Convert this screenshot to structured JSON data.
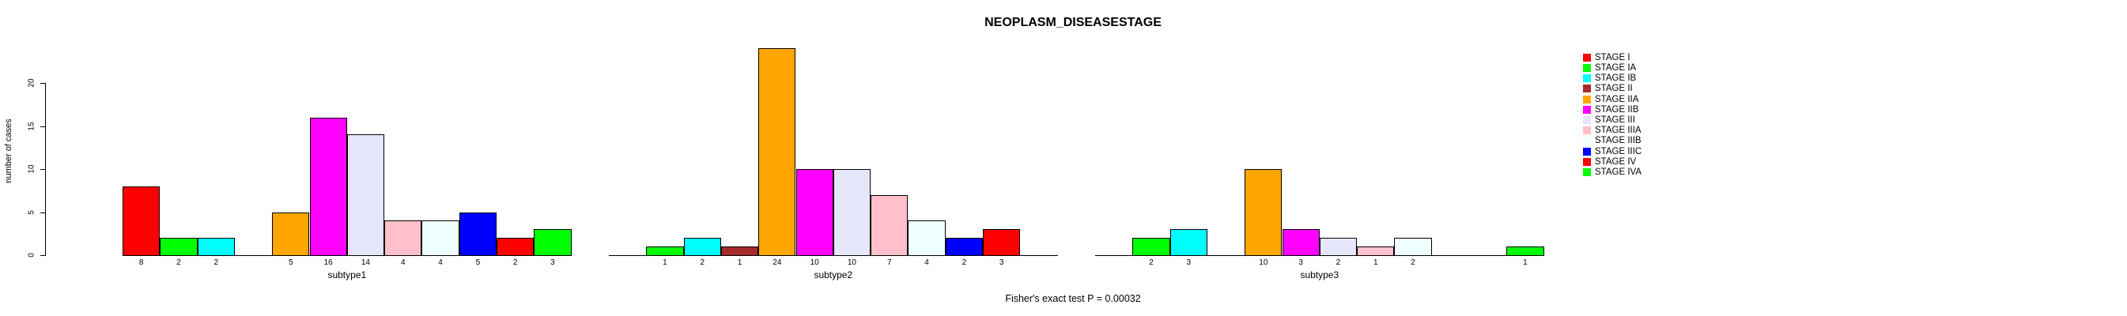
{
  "title": "NEOPLASM_DISEASESTAGE",
  "footer": "Fisher's exact test P = 0.00032",
  "y_axis": {
    "label": "number of cases",
    "ticks": [
      "0",
      "5",
      "10",
      "15",
      "20"
    ]
  },
  "x_group_labels": [
    "subtype1",
    "subtype2",
    "subtype3"
  ],
  "legend": {
    "entries": [
      {
        "label": "STAGE I",
        "color": "#FF0000"
      },
      {
        "label": "STAGE IA",
        "color": "#00FF00"
      },
      {
        "label": "STAGE IB",
        "color": "#00FFFF"
      },
      {
        "label": "STAGE II",
        "color": "#A52A2A"
      },
      {
        "label": "STAGE IIA",
        "color": "#FFA500"
      },
      {
        "label": "STAGE IIB",
        "color": "#FF00FF"
      },
      {
        "label": "STAGE III",
        "color": "#E6E6FA"
      },
      {
        "label": "STAGE IIIA",
        "color": "#FFC0CB"
      },
      {
        "label": "STAGE IIIB",
        "color": "#F0FFFF"
      },
      {
        "label": "STAGE IIIC",
        "color": "#0000FF"
      },
      {
        "label": "STAGE IV",
        "color": "#FF0000"
      },
      {
        "label": "STAGE IVA",
        "color": "#00FF00"
      }
    ]
  },
  "chart_data": {
    "type": "bar",
    "title": "NEOPLASM_DISEASESTAGE",
    "ylabel": "number of cases",
    "xlabel": "",
    "ylim": [
      0,
      20
    ],
    "yticks": [
      0,
      5,
      10,
      15,
      20
    ],
    "grid": false,
    "legend_position": "right",
    "annotation": "Fisher's exact test P = 0.00032",
    "categories": [
      "STAGE I",
      "STAGE IA",
      "STAGE IB",
      "STAGE II",
      "STAGE IIA",
      "STAGE IIB",
      "STAGE III",
      "STAGE IIIA",
      "STAGE IIIB",
      "STAGE IIIC",
      "STAGE IV",
      "STAGE IVA"
    ],
    "colors": [
      "#FF0000",
      "#00FF00",
      "#00FFFF",
      "#A52A2A",
      "#FFA500",
      "#FF00FF",
      "#E6E6FA",
      "#FFC0CB",
      "#F0FFFF",
      "#0000FF",
      "#FF0000",
      "#00FF00"
    ],
    "series": [
      {
        "name": "subtype1",
        "values": [
          8,
          2,
          2,
          0,
          5,
          16,
          14,
          4,
          4,
          5,
          2,
          3
        ]
      },
      {
        "name": "subtype2",
        "values": [
          0,
          1,
          2,
          1,
          24,
          10,
          10,
          7,
          4,
          2,
          3,
          0
        ]
      },
      {
        "name": "subtype3",
        "values": [
          0,
          2,
          3,
          0,
          10,
          3,
          2,
          1,
          2,
          0,
          0,
          1
        ]
      }
    ],
    "value_labels": "value shown under each nonzero bar; zero-value stages drawn as empty slots"
  }
}
